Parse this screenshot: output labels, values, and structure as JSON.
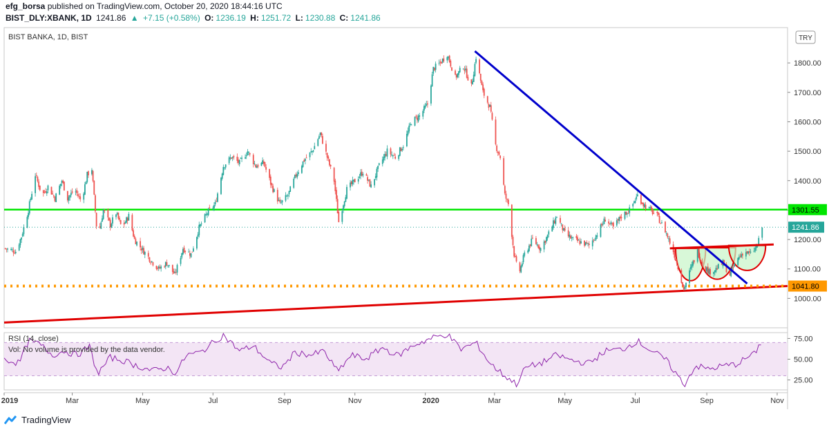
{
  "publisher": {
    "user": "efg_borsa",
    "text": "published on TradingView.com, October 20, 2020 18:44:16 UTC"
  },
  "ticker": {
    "symbol": "BIST_DLY:XBANK, 1D",
    "last": "1241.86",
    "change": "+7.15 (+0.58%)",
    "open_label": "O:",
    "open": "1236.19",
    "high_label": "H:",
    "high": "1251.72",
    "low_label": "L:",
    "low": "1230.88",
    "close_label": "C:",
    "close": "1241.86"
  },
  "colors": {
    "up": "#26a69a",
    "down": "#ef5350",
    "horizontal_line": "#00e600",
    "trendline": "#0000cc",
    "support": "#ff9800",
    "base_line": "#e00000",
    "rsi": "#8e24aa",
    "rsi_band": "#f3e5f5",
    "pattern_fill": "#c8f5c8"
  },
  "chart_data": {
    "type": "candlestick",
    "title": "BIST BANKA, 1D, BIST",
    "currency_button": "TRY",
    "price_axis": {
      "ticks": [
        1000,
        1100,
        1200,
        1300,
        1400,
        1500,
        1600,
        1700,
        1800
      ],
      "range": [
        900,
        1920
      ],
      "top_tick_visible": "1"
    },
    "x_axis": {
      "ticks": [
        "2019",
        "Mar",
        "May",
        "Jul",
        "Sep",
        "Nov",
        "2020",
        "Mar",
        "May",
        "Jul",
        "Sep",
        "Nov"
      ],
      "start": "2019-01-01",
      "end": "2020-11-10"
    },
    "last_price_label": "1241.86",
    "levels": [
      {
        "name": "resistance",
        "value": 1301.55,
        "label": "1301.55",
        "style": "solid-green"
      },
      {
        "name": "support",
        "value": 1041.8,
        "label": "1041.80",
        "style": "dotted-orange"
      }
    ],
    "drawings": {
      "downtrend": {
        "from": [
          "2020-02-13",
          1840
        ],
        "to": [
          "2020-10-06",
          1050
        ]
      },
      "rising_base": {
        "from": [
          "2019-01-01",
          918
        ],
        "to": [
          "2020-11-10",
          1042
        ]
      },
      "neckline": {
        "from": [
          "2020-07-31",
          1170
        ],
        "to": [
          "2020-10-29",
          1183
        ]
      },
      "pattern_troughs": [
        {
          "x": [
            "2020-08-05",
            "2020-08-31"
          ],
          "top": 1170,
          "bottom": 1060
        },
        {
          "x": [
            "2020-08-25",
            "2020-09-26"
          ],
          "top": 1172,
          "bottom": 1065
        },
        {
          "x": [
            "2020-09-20",
            "2020-10-22"
          ],
          "top": 1180,
          "bottom": 1095
        }
      ]
    },
    "close_path": [
      [
        "2019-01-01",
        1170
      ],
      [
        "2019-01-11",
        1160
      ],
      [
        "2019-01-16",
        1210
      ],
      [
        "2019-01-22",
        1300
      ],
      [
        "2019-01-28",
        1420
      ],
      [
        "2019-02-03",
        1350
      ],
      [
        "2019-02-08",
        1380
      ],
      [
        "2019-02-14",
        1340
      ],
      [
        "2019-02-20",
        1400
      ],
      [
        "2019-02-25",
        1340
      ],
      [
        "2019-03-03",
        1370
      ],
      [
        "2019-03-09",
        1330
      ],
      [
        "2019-03-14",
        1420
      ],
      [
        "2019-03-18",
        1440
      ],
      [
        "2019-03-23",
        1200
      ],
      [
        "2019-03-28",
        1300
      ],
      [
        "2019-04-03",
        1250
      ],
      [
        "2019-04-08",
        1290
      ],
      [
        "2019-04-13",
        1240
      ],
      [
        "2019-04-19",
        1280
      ],
      [
        "2019-04-24",
        1200
      ],
      [
        "2019-04-30",
        1170
      ],
      [
        "2019-05-08",
        1130
      ],
      [
        "2019-05-15",
        1100
      ],
      [
        "2019-05-22",
        1120
      ],
      [
        "2019-05-29",
        1080
      ],
      [
        "2019-06-05",
        1170
      ],
      [
        "2019-06-12",
        1150
      ],
      [
        "2019-06-19",
        1240
      ],
      [
        "2019-06-26",
        1290
      ],
      [
        "2019-07-03",
        1320
      ],
      [
        "2019-07-10",
        1450
      ],
      [
        "2019-07-17",
        1480
      ],
      [
        "2019-07-24",
        1460
      ],
      [
        "2019-07-31",
        1500
      ],
      [
        "2019-08-07",
        1450
      ],
      [
        "2019-08-14",
        1460
      ],
      [
        "2019-08-21",
        1380
      ],
      [
        "2019-08-28",
        1320
      ],
      [
        "2019-09-04",
        1350
      ],
      [
        "2019-09-11",
        1420
      ],
      [
        "2019-09-18",
        1470
      ],
      [
        "2019-09-25",
        1500
      ],
      [
        "2019-10-02",
        1560
      ],
      [
        "2019-10-08",
        1480
      ],
      [
        "2019-10-14",
        1400
      ],
      [
        "2019-10-18",
        1260
      ],
      [
        "2019-10-25",
        1370
      ],
      [
        "2019-11-01",
        1400
      ],
      [
        "2019-11-08",
        1430
      ],
      [
        "2019-11-15",
        1380
      ],
      [
        "2019-11-22",
        1450
      ],
      [
        "2019-11-29",
        1500
      ],
      [
        "2019-12-06",
        1480
      ],
      [
        "2019-12-13",
        1520
      ],
      [
        "2019-12-20",
        1600
      ],
      [
        "2019-12-27",
        1620
      ],
      [
        "2020-01-03",
        1660
      ],
      [
        "2020-01-08",
        1780
      ],
      [
        "2020-01-14",
        1800
      ],
      [
        "2020-01-20",
        1830
      ],
      [
        "2020-01-27",
        1750
      ],
      [
        "2020-02-03",
        1790
      ],
      [
        "2020-02-10",
        1720
      ],
      [
        "2020-02-14",
        1820
      ],
      [
        "2020-02-20",
        1700
      ],
      [
        "2020-02-26",
        1650
      ],
      [
        "2020-03-02",
        1520
      ],
      [
        "2020-03-06",
        1480
      ],
      [
        "2020-03-10",
        1350
      ],
      [
        "2020-03-13",
        1320
      ],
      [
        "2020-03-18",
        1150
      ],
      [
        "2020-03-22",
        1080
      ],
      [
        "2020-03-27",
        1150
      ],
      [
        "2020-04-03",
        1200
      ],
      [
        "2020-04-10",
        1170
      ],
      [
        "2020-04-17",
        1220
      ],
      [
        "2020-04-24",
        1280
      ],
      [
        "2020-05-01",
        1220
      ],
      [
        "2020-05-08",
        1200
      ],
      [
        "2020-05-15",
        1190
      ],
      [
        "2020-05-22",
        1180
      ],
      [
        "2020-05-29",
        1220
      ],
      [
        "2020-06-05",
        1270
      ],
      [
        "2020-06-12",
        1240
      ],
      [
        "2020-06-19",
        1280
      ],
      [
        "2020-06-26",
        1300
      ],
      [
        "2020-07-03",
        1350
      ],
      [
        "2020-07-08",
        1320
      ],
      [
        "2020-07-14",
        1300
      ],
      [
        "2020-07-20",
        1280
      ],
      [
        "2020-07-27",
        1230
      ],
      [
        "2020-08-03",
        1160
      ],
      [
        "2020-08-09",
        1080
      ],
      [
        "2020-08-12",
        1030
      ],
      [
        "2020-08-18",
        1100
      ],
      [
        "2020-08-24",
        1160
      ],
      [
        "2020-08-28",
        1120
      ],
      [
        "2020-09-03",
        1090
      ],
      [
        "2020-09-09",
        1100
      ],
      [
        "2020-09-15",
        1120
      ],
      [
        "2020-09-21",
        1080
      ],
      [
        "2020-09-27",
        1130
      ],
      [
        "2020-10-03",
        1160
      ],
      [
        "2020-10-09",
        1150
      ],
      [
        "2020-10-15",
        1180
      ],
      [
        "2020-10-19",
        1242
      ]
    ],
    "rsi": {
      "label": "RSI (14, close)",
      "note": "Vol: No volume is provided by the data vendor.",
      "ticks": [
        25,
        50,
        75
      ],
      "range": [
        13,
        82
      ],
      "upper": 70,
      "lower": 30,
      "path": [
        [
          "2019-01-01",
          50
        ],
        [
          "2019-01-14",
          45
        ],
        [
          "2019-01-22",
          72
        ],
        [
          "2019-02-01",
          68
        ],
        [
          "2019-02-12",
          55
        ],
        [
          "2019-02-22",
          60
        ],
        [
          "2019-03-05",
          55
        ],
        [
          "2019-03-16",
          65
        ],
        [
          "2019-03-23",
          32
        ],
        [
          "2019-04-03",
          52
        ],
        [
          "2019-04-15",
          48
        ],
        [
          "2019-04-26",
          42
        ],
        [
          "2019-05-10",
          36
        ],
        [
          "2019-05-22",
          40
        ],
        [
          "2019-05-30",
          33
        ],
        [
          "2019-06-08",
          55
        ],
        [
          "2019-06-20",
          58
        ],
        [
          "2019-07-03",
          72
        ],
        [
          "2019-07-10",
          79
        ],
        [
          "2019-07-24",
          60
        ],
        [
          "2019-08-05",
          66
        ],
        [
          "2019-08-20",
          45
        ],
        [
          "2019-08-30",
          40
        ],
        [
          "2019-09-10",
          58
        ],
        [
          "2019-09-25",
          55
        ],
        [
          "2019-10-05",
          60
        ],
        [
          "2019-10-17",
          35
        ],
        [
          "2019-10-29",
          55
        ],
        [
          "2019-11-10",
          50
        ],
        [
          "2019-11-25",
          64
        ],
        [
          "2019-12-08",
          54
        ],
        [
          "2019-12-22",
          67
        ],
        [
          "2020-01-08",
          76
        ],
        [
          "2020-01-20",
          80
        ],
        [
          "2020-02-01",
          62
        ],
        [
          "2020-02-14",
          70
        ],
        [
          "2020-02-26",
          45
        ],
        [
          "2020-03-08",
          32
        ],
        [
          "2020-03-20",
          20
        ],
        [
          "2020-03-28",
          40
        ],
        [
          "2020-04-10",
          45
        ],
        [
          "2020-04-24",
          55
        ],
        [
          "2020-05-08",
          48
        ],
        [
          "2020-05-22",
          45
        ],
        [
          "2020-06-05",
          60
        ],
        [
          "2020-06-20",
          62
        ],
        [
          "2020-07-03",
          72
        ],
        [
          "2020-07-15",
          60
        ],
        [
          "2020-07-27",
          50
        ],
        [
          "2020-08-08",
          28
        ],
        [
          "2020-08-12",
          18
        ],
        [
          "2020-08-22",
          42
        ],
        [
          "2020-09-03",
          38
        ],
        [
          "2020-09-15",
          42
        ],
        [
          "2020-09-27",
          44
        ],
        [
          "2020-10-06",
          52
        ],
        [
          "2020-10-12",
          56
        ],
        [
          "2020-10-19",
          72
        ]
      ]
    }
  },
  "branding": {
    "name": "TradingView"
  }
}
